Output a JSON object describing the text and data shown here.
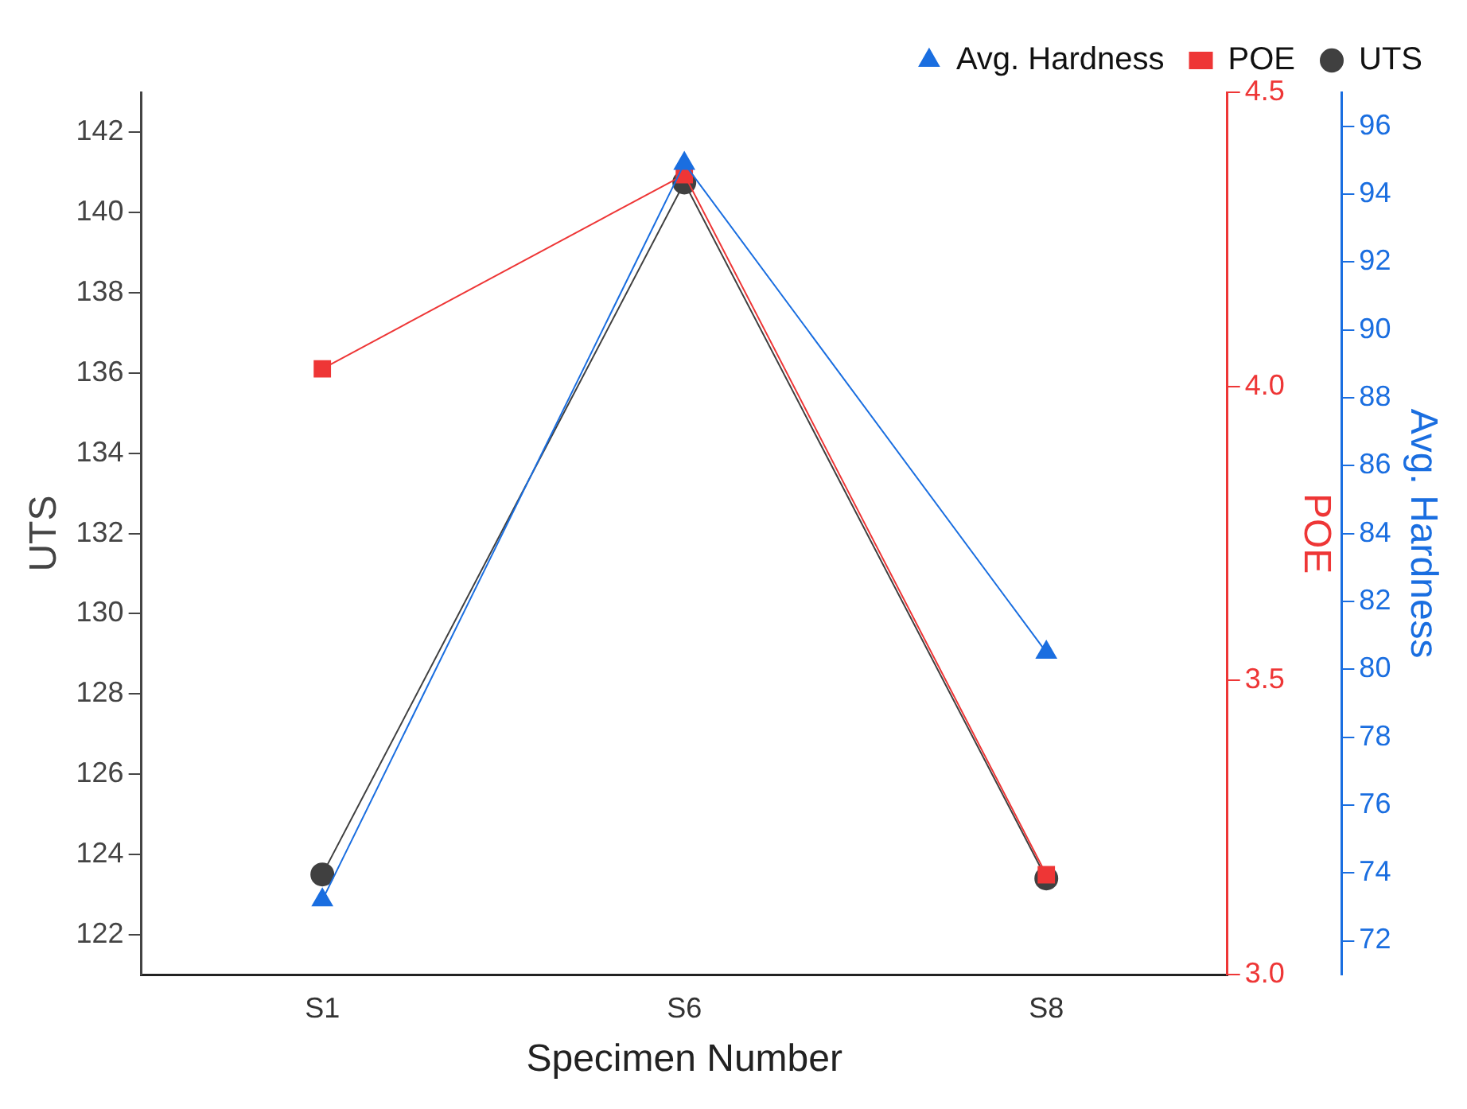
{
  "chart_data": {
    "type": "line",
    "xlabel": "Specimen Number",
    "ylabel": "UTS",
    "y2label": "POE",
    "y3label": "Avg. Hardness",
    "categories": [
      "S1",
      "S6",
      "S8"
    ],
    "series": [
      {
        "name": "UTS",
        "color": "#404040",
        "marker": "circle",
        "axis": "y",
        "values": [
          123.5,
          140.75,
          123.4
        ]
      },
      {
        "name": "POE",
        "color": "#ee3636",
        "marker": "square",
        "axis": "y2",
        "values": [
          4.03,
          4.36,
          3.17
        ]
      },
      {
        "name": "Avg. Hardness",
        "color": "#1a6ee0",
        "marker": "triangle",
        "axis": "y3",
        "values": [
          73.2,
          94.9,
          80.5
        ]
      }
    ],
    "ylim": [
      121,
      143
    ],
    "yticks": [
      122,
      124,
      126,
      128,
      130,
      132,
      134,
      136,
      138,
      140,
      142
    ],
    "y2lim": [
      3,
      4.5
    ],
    "y2ticks": [
      {
        "value": 3,
        "label": "3.0"
      },
      {
        "value": 3.5,
        "label": "3.5"
      },
      {
        "value": 4,
        "label": "4.0"
      },
      {
        "value": 4.5,
        "label": "4.5"
      }
    ],
    "y3lim": [
      71,
      97
    ],
    "y3ticks": [
      72,
      74,
      76,
      78,
      80,
      82,
      84,
      86,
      88,
      90,
      92,
      94,
      96
    ],
    "legend": "top",
    "grid": false,
    "line_style": "solid"
  }
}
